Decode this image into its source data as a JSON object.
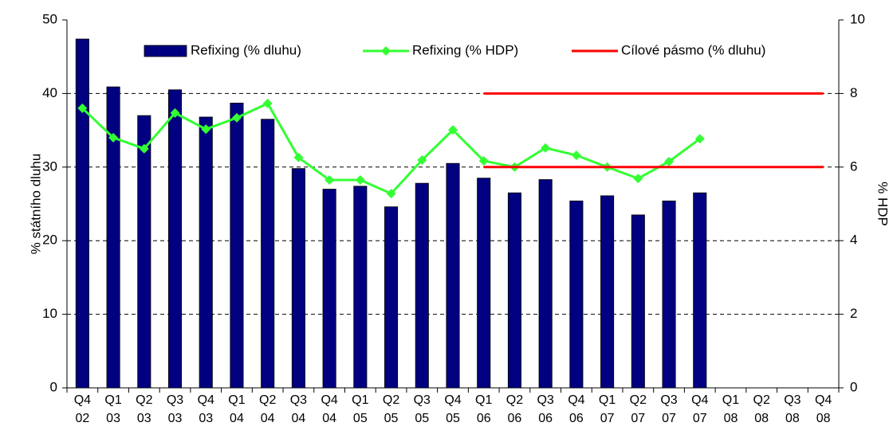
{
  "chart_data": {
    "type": "bar-line",
    "y_label": "% státního dluhu",
    "y2_label": "% HDP",
    "categories": [
      "Q4 02",
      "Q1 03",
      "Q2 03",
      "Q3 03",
      "Q4 03",
      "Q1 04",
      "Q2 04",
      "Q3 04",
      "Q4 04",
      "Q1 05",
      "Q2 05",
      "Q3 05",
      "Q4 05",
      "Q1 06",
      "Q2 06",
      "Q3 06",
      "Q4 06",
      "Q1 07",
      "Q2 07",
      "Q3 07",
      "Q4 07",
      "Q1 08",
      "Q2 08",
      "Q3 08",
      "Q4 08"
    ],
    "series": [
      {
        "name": "Refixing (% dluhu)",
        "type": "bar",
        "color": "#000080",
        "values": [
          47.4,
          40.9,
          37.0,
          40.5,
          36.8,
          38.7,
          36.5,
          29.8,
          27.0,
          27.4,
          24.6,
          27.8,
          30.5,
          28.5,
          26.5,
          28.3,
          25.4,
          26.1,
          23.5,
          25.4,
          26.5,
          null,
          null,
          null,
          null
        ]
      },
      {
        "name": "Refixing (% HDP)",
        "type": "line",
        "axis": "y2",
        "marker": "diamond",
        "color": "#33ff33",
        "values": [
          7.6,
          6.8,
          6.5,
          7.47,
          7.03,
          7.34,
          7.73,
          6.26,
          5.65,
          5.65,
          5.28,
          6.19,
          7.01,
          6.17,
          6.0,
          6.52,
          6.32,
          6.0,
          5.69,
          6.15,
          6.77,
          null,
          null,
          null,
          null
        ]
      },
      {
        "name": "Cílové pásmo (% dluhu)",
        "type": "band-lines",
        "color": "#ff0000",
        "values": [
          null,
          null,
          null,
          null,
          null,
          null,
          null,
          null,
          null,
          null,
          null,
          null,
          null,
          40,
          40,
          40,
          40,
          40,
          40,
          40,
          40,
          40,
          40,
          40,
          40
        ],
        "lower_values": [
          null,
          null,
          null,
          null,
          null,
          null,
          null,
          null,
          null,
          null,
          null,
          null,
          null,
          30,
          30,
          30,
          30,
          30,
          30,
          30,
          30,
          30,
          30,
          30,
          30
        ]
      }
    ],
    "ylim": [
      0,
      50
    ],
    "yticks": [
      0,
      10,
      20,
      30,
      40,
      50
    ],
    "y2lim": [
      0,
      10
    ],
    "y2ticks": [
      0,
      2,
      4,
      6,
      8,
      10
    ],
    "grid": true,
    "legend": "top"
  }
}
